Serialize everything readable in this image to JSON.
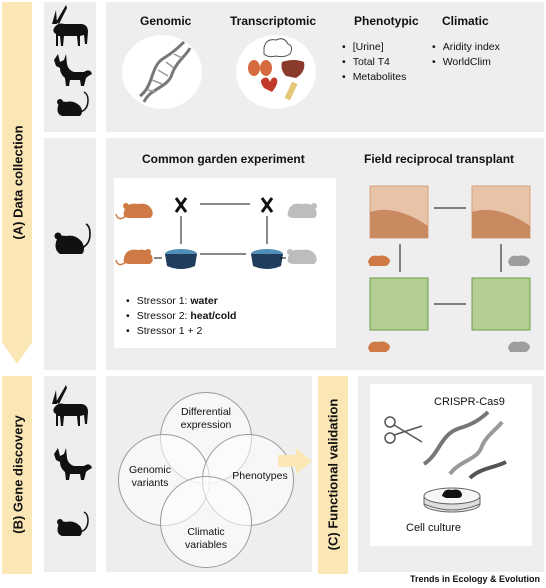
{
  "sections": {
    "a_label": "(A) Data collection",
    "b_label": "(B) Gene discovery",
    "c_label": "(C) Functional validation"
  },
  "data_types": {
    "genomic": "Genomic",
    "transcriptomic": "Transcriptomic",
    "phenotypic": "Phenotypic",
    "climatic": "Climatic",
    "phenotypic_items": [
      "[Urine]",
      "Total T4",
      "Metabolites"
    ],
    "climatic_items": [
      "Aridity index",
      "WorldClim"
    ]
  },
  "common_garden": {
    "title": "Common garden experiment",
    "stressors": [
      "Stressor 1: ",
      "Stressor 2: ",
      "Stressor 1 + 2"
    ],
    "stressor_bold": [
      "water",
      "heat/cold",
      ""
    ]
  },
  "field": {
    "title": "Field reciprocal transplant"
  },
  "venn": {
    "top": [
      "Differential",
      "expression"
    ],
    "left": [
      "Genomic",
      "variants"
    ],
    "right": "Phenotypes",
    "bottom": [
      "Climatic",
      "variables"
    ]
  },
  "validation": {
    "crispr": "CRISPR-Cas9",
    "cell_culture": "Cell culture"
  },
  "footer": "Trends in Ecology & Evolution",
  "colors": {
    "panel": "#eeeeee",
    "arrow": "#fbe6b5",
    "mouse_orange": "#cf7a45",
    "mouse_grey": "#bdbdbd",
    "sand": "#d9a88a",
    "grass": "#a8c485"
  }
}
